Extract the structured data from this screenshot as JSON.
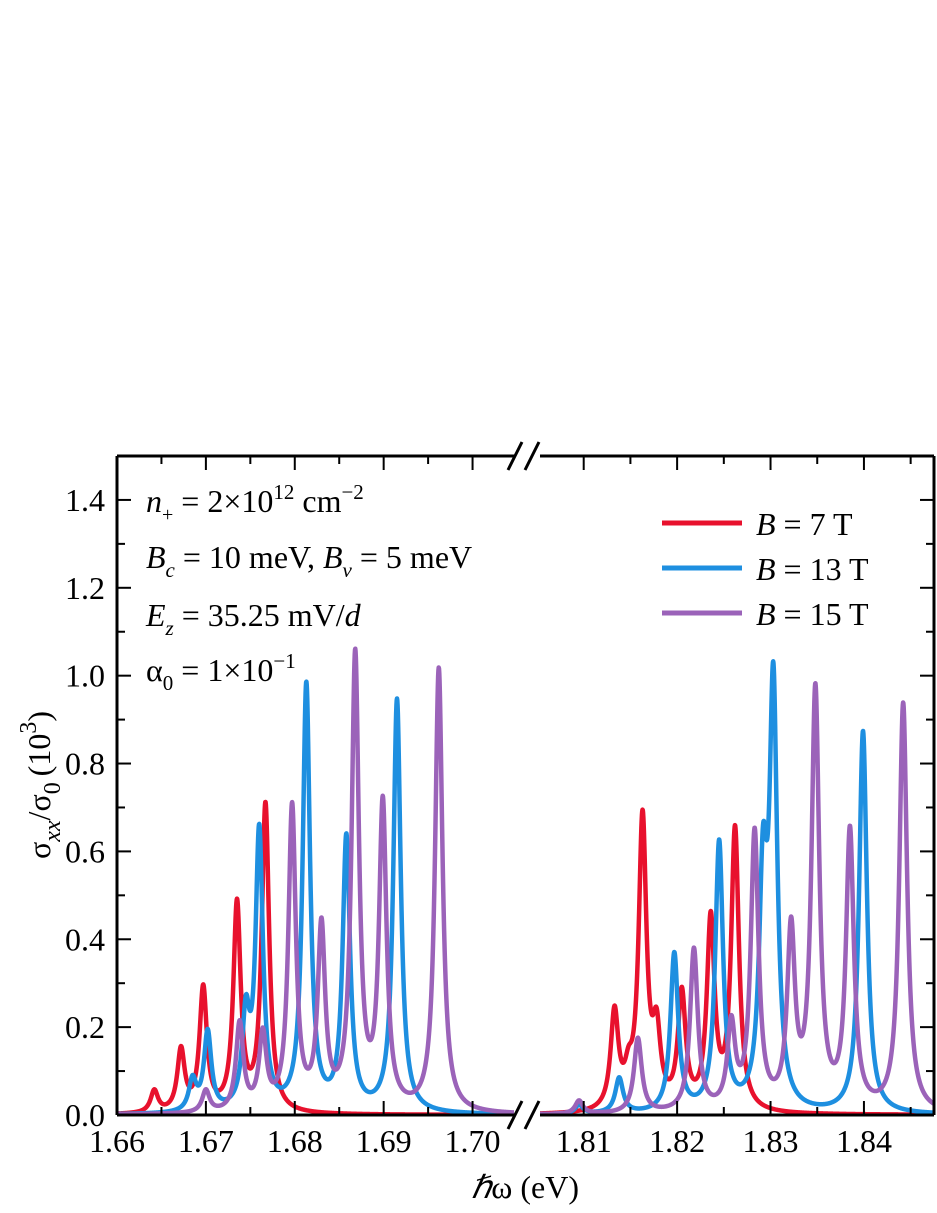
{
  "chart_data": {
    "type": "line",
    "xlabel_hbar": "ℏ",
    "xlabel_rest": "ω (eV)",
    "ylabel": {
      "sigma": "σ",
      "sub1": "xx",
      "slash": "/σ",
      "sub2": "0",
      "paren": "(10",
      "sup": "3",
      "close": ")"
    },
    "ylim": [
      0,
      1.5
    ],
    "yticks": [
      "0.0",
      "0.2",
      "0.4",
      "0.6",
      "0.8",
      "1.0",
      "1.2",
      "1.4"
    ],
    "x_axis_broken": true,
    "x_segments": [
      {
        "xlim": [
          1.66,
          1.705
        ],
        "ticks": [
          "1.66",
          "1.67",
          "1.68",
          "1.69",
          "1.70"
        ]
      },
      {
        "xlim": [
          1.805,
          1.8475
        ],
        "ticks": [
          "1.81",
          "1.82",
          "1.83",
          "1.84"
        ]
      }
    ],
    "annotations": {
      "line1": {
        "n": "n",
        "nsub": "+",
        "mid": " = 2×10",
        "exp": "12",
        "unit": " cm",
        "uexp": "−2"
      },
      "line2": {
        "b1": "B",
        "b1sub": "c",
        "mid": " = 10 meV, ",
        "b2": "B",
        "b2sub": "v",
        "end": " = 5 meV"
      },
      "line3": {
        "e": "E",
        "esub": "z",
        "mid": " = 35.25 mV/",
        "d": "d"
      },
      "line4": {
        "a": "α",
        "asub": "0",
        "mid": " = 1×10",
        "exp": "−1"
      }
    },
    "linewidth_gamma_eV": 0.0005,
    "series": [
      {
        "name": "= 7 T",
        "legend_var": "B",
        "color": "#e8112d",
        "peaks": [
          [
            1.6642,
            0.05
          ],
          [
            1.6672,
            0.14
          ],
          [
            1.6697,
            0.28
          ],
          [
            1.6735,
            0.47
          ],
          [
            1.6767,
            0.7
          ],
          [
            1.8133,
            0.22
          ],
          [
            1.8148,
            0.06
          ],
          [
            1.8163,
            0.66
          ],
          [
            1.8178,
            0.16
          ],
          [
            1.8205,
            0.26
          ],
          [
            1.8236,
            0.43
          ],
          [
            1.8262,
            0.64
          ]
        ]
      },
      {
        "name": "= 13 T",
        "legend_var": "B",
        "color": "#1e8fe0",
        "peaks": [
          [
            1.6685,
            0.07
          ],
          [
            1.6702,
            0.18
          ],
          [
            1.6745,
            0.2
          ],
          [
            1.676,
            0.63
          ],
          [
            1.6813,
            0.97
          ],
          [
            1.6858,
            0.62
          ],
          [
            1.6915,
            0.94
          ],
          [
            1.8095,
            0.02
          ],
          [
            1.8138,
            0.08
          ],
          [
            1.8197,
            0.36
          ],
          [
            1.8245,
            0.61
          ],
          [
            1.8292,
            0.49
          ],
          [
            1.8303,
            0.94
          ],
          [
            1.8399,
            0.87
          ]
        ]
      },
      {
        "name": "= 15 T",
        "legend_var": "B",
        "color": "#9b63b9",
        "peaks": [
          [
            1.67,
            0.05
          ],
          [
            1.6738,
            0.2
          ],
          [
            1.6764,
            0.17
          ],
          [
            1.6797,
            0.69
          ],
          [
            1.683,
            0.41
          ],
          [
            1.6868,
            1.03
          ],
          [
            1.6899,
            0.69
          ],
          [
            1.6962,
            1.01
          ],
          [
            1.8095,
            0.03
          ],
          [
            1.8158,
            0.17
          ],
          [
            1.8218,
            0.37
          ],
          [
            1.8258,
            0.19
          ],
          [
            1.8283,
            0.63
          ],
          [
            1.8322,
            0.4
          ],
          [
            1.8348,
            0.95
          ],
          [
            1.8385,
            0.63
          ],
          [
            1.8442,
            0.93
          ]
        ]
      }
    ]
  }
}
